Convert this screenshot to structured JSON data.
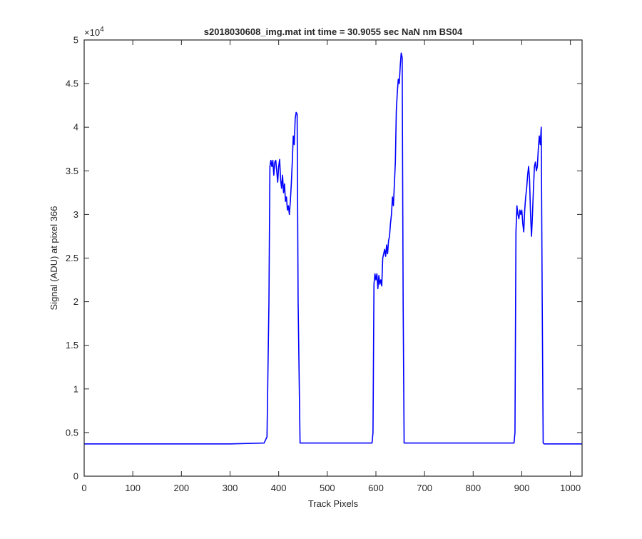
{
  "chart_data": {
    "type": "line",
    "title": "s2018030608_img.mat int time = 30.9055 sec  NaN nm BS04",
    "xlabel": "Track Pixels",
    "ylabel": "Signal (ADU) at pixel 366",
    "y_exponent_label": "×10",
    "y_exponent_power": "4",
    "xlim": [
      0,
      1024
    ],
    "ylim": [
      0,
      5
    ],
    "xticks": [
      "0",
      "100",
      "200",
      "300",
      "400",
      "500",
      "600",
      "700",
      "800",
      "900",
      "1000"
    ],
    "yticks": [
      "0",
      "0.5",
      "1",
      "1.5",
      "2",
      "2.5",
      "3",
      "3.5",
      "4",
      "4.5",
      "5"
    ],
    "grid": false,
    "line_color": "#0000ff",
    "series": [
      {
        "x": [
          0,
          100,
          200,
          300,
          370,
          376,
          380,
          382,
          384,
          386,
          388,
          390,
          392,
          394,
          396,
          398,
          400,
          402,
          404,
          406,
          408,
          410,
          412,
          414,
          416,
          418,
          420,
          422,
          424,
          426,
          428,
          430,
          432,
          434,
          436,
          438,
          440,
          444,
          500,
          560,
          592,
          594,
          596,
          598,
          600,
          602,
          604,
          606,
          608,
          610,
          612,
          614,
          616,
          618,
          620,
          622,
          624,
          626,
          628,
          630,
          632,
          634,
          636,
          638,
          640,
          642,
          644,
          646,
          648,
          650,
          652,
          654,
          656,
          658,
          662,
          700,
          800,
          884,
          886,
          888,
          890,
          892,
          894,
          896,
          898,
          900,
          902,
          904,
          906,
          908,
          910,
          912,
          914,
          916,
          918,
          920,
          922,
          924,
          926,
          928,
          930,
          932,
          934,
          936,
          938,
          940,
          942,
          944,
          946,
          948,
          950,
          952,
          956,
          1000,
          1024
        ],
        "y": [
          0.37,
          0.37,
          0.37,
          0.37,
          0.38,
          0.45,
          2.0,
          3.55,
          3.62,
          3.55,
          3.62,
          3.45,
          3.6,
          3.62,
          3.5,
          3.37,
          3.55,
          3.63,
          3.4,
          3.3,
          3.45,
          3.25,
          3.35,
          3.15,
          3.2,
          3.05,
          3.1,
          3.0,
          3.15,
          3.35,
          3.6,
          3.9,
          3.8,
          4.1,
          4.17,
          4.15,
          2.0,
          0.38,
          0.38,
          0.38,
          0.38,
          0.5,
          2.2,
          2.32,
          2.25,
          2.32,
          2.15,
          2.3,
          2.2,
          2.25,
          2.18,
          2.5,
          2.55,
          2.6,
          2.52,
          2.65,
          2.55,
          2.7,
          2.75,
          2.9,
          3.0,
          3.2,
          3.1,
          3.35,
          3.6,
          4.2,
          4.4,
          4.55,
          4.5,
          4.7,
          4.85,
          4.8,
          2.0,
          0.38,
          0.38,
          0.38,
          0.38,
          0.38,
          0.5,
          2.8,
          3.1,
          3.0,
          2.95,
          3.05,
          3.0,
          3.05,
          2.9,
          2.8,
          3.05,
          3.2,
          3.3,
          3.45,
          3.55,
          3.4,
          3.0,
          2.75,
          3.0,
          3.3,
          3.55,
          3.6,
          3.5,
          3.55,
          3.75,
          3.9,
          3.8,
          4.0,
          2.0,
          0.38,
          0.37,
          0.37,
          0.37,
          0.37,
          0.37,
          0.37,
          0.37
        ]
      }
    ]
  }
}
